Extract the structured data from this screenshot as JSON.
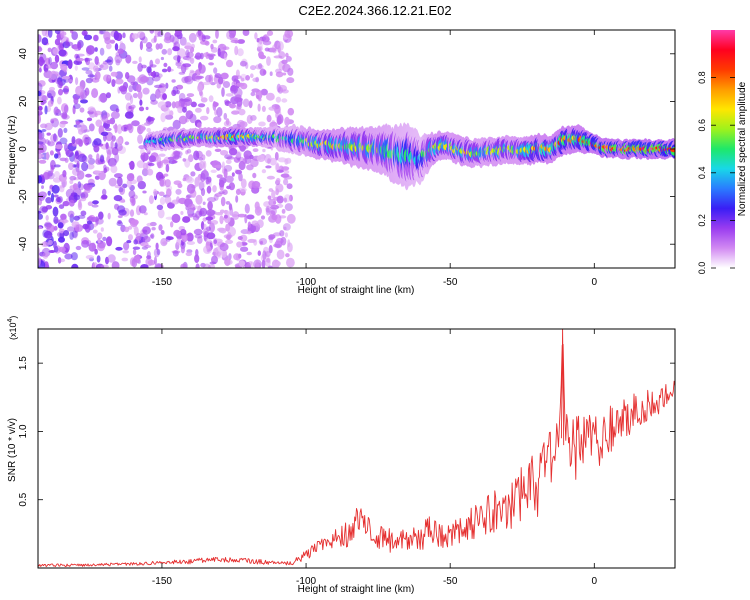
{
  "title": "C2E2.2024.366.12.21.E02",
  "chart_data": [
    {
      "type": "heatmap",
      "xlabel": "Height of straight line (km)",
      "ylabel": "Frequency (Hz)",
      "xlim": [
        -193,
        28
      ],
      "ylim": [
        -50,
        50
      ],
      "xticks": [
        -150,
        -100,
        -50,
        0
      ],
      "yticks": [
        -40,
        -20,
        0,
        20,
        40
      ],
      "colorbar": {
        "label": "Normalized spectral amplitude",
        "range": [
          0,
          1
        ],
        "ticks": [
          "0.0",
          "0.2",
          "0.4",
          "0.6",
          "0.8"
        ],
        "colors": [
          "#ffffff",
          "#d28af2",
          "#9a3cf0",
          "#3a1ef5",
          "#2a7bff",
          "#18d8e8",
          "#1ee86a",
          "#9ef21c",
          "#ffe600",
          "#ff9c00",
          "#ff3a00",
          "#ff0020",
          "#ff3aa8"
        ]
      },
      "ridge": {
        "x": [
          -155,
          -145,
          -135,
          -125,
          -115,
          -105,
          -95,
          -85,
          -75,
          -65,
          -60,
          -55,
          -50,
          -45,
          -40,
          -35,
          -30,
          -25,
          -20,
          -15,
          -10,
          -5,
          0,
          5,
          10,
          15,
          20,
          25,
          28
        ],
        "y": [
          3,
          4,
          5,
          5,
          5,
          4,
          2,
          1,
          0,
          -3,
          -4,
          1,
          1,
          -1,
          -2,
          -1,
          0,
          -1,
          0,
          0,
          4,
          4,
          2,
          0,
          0,
          0,
          0,
          0,
          0
        ],
        "halfwidth": [
          2,
          2,
          2,
          2,
          2,
          3,
          3,
          4,
          5,
          7,
          5,
          3,
          3,
          3,
          3,
          3,
          3,
          3,
          3,
          3,
          3,
          3,
          2,
          2,
          2,
          2,
          2,
          2,
          2
        ],
        "amplitude": [
          0.4,
          0.5,
          0.6,
          0.75,
          0.5,
          0.45,
          0.65,
          0.6,
          0.55,
          0.45,
          0.4,
          0.65,
          0.6,
          0.65,
          0.55,
          0.6,
          0.6,
          0.6,
          0.75,
          0.7,
          0.8,
          0.75,
          0.85,
          0.9,
          0.85,
          0.9,
          0.9,
          0.85,
          0.85
        ]
      },
      "noise_region": {
        "x": [
          -193,
          -105
        ],
        "y": [
          -50,
          50
        ],
        "amplitude": [
          0.05,
          0.25
        ]
      }
    },
    {
      "type": "line",
      "xlabel": "Height of straight line (km)",
      "ylabel": "SNR (10 * v/v)",
      "y_multiplier": "(x10",
      "y_multiplier_exp": "4",
      "multiplier_close": ")",
      "xlim": [
        -193,
        28
      ],
      "ylim": [
        0,
        1.75
      ],
      "xticks": [
        -150,
        -100,
        -50,
        0
      ],
      "yticks": [
        "0.5",
        "1.0",
        "1.5"
      ],
      "line_color": "#e53030",
      "series": [
        {
          "x": [
            -193,
            -180,
            -160,
            -150,
            -140,
            -130,
            -125,
            -120,
            -110,
            -105,
            -100,
            -95,
            -90,
            -85,
            -82,
            -80,
            -75,
            -70,
            -65,
            -60,
            -58,
            -55,
            -50,
            -45,
            -40,
            -35,
            -30,
            -25,
            -22,
            -20,
            -18,
            -15,
            -12,
            -11,
            -10,
            -8,
            -5,
            -3,
            0,
            5,
            10,
            15,
            20,
            25,
            28
          ],
          "y": [
            0.02,
            0.02,
            0.03,
            0.04,
            0.05,
            0.06,
            0.06,
            0.05,
            0.04,
            0.03,
            0.1,
            0.15,
            0.2,
            0.25,
            0.4,
            0.3,
            0.22,
            0.2,
            0.22,
            0.2,
            0.3,
            0.25,
            0.25,
            0.3,
            0.35,
            0.4,
            0.45,
            0.55,
            0.7,
            0.5,
            0.8,
            0.8,
            1.0,
            1.75,
            0.9,
            0.85,
            0.9,
            1.0,
            0.9,
            1.0,
            1.1,
            1.15,
            1.2,
            1.25,
            1.3
          ],
          "noise": [
            0.01,
            0.01,
            0.01,
            0.015,
            0.02,
            0.02,
            0.02,
            0.02,
            0.015,
            0.015,
            0.04,
            0.06,
            0.08,
            0.1,
            0.12,
            0.1,
            0.09,
            0.09,
            0.09,
            0.09,
            0.1,
            0.1,
            0.1,
            0.12,
            0.14,
            0.16,
            0.18,
            0.2,
            0.22,
            0.2,
            0.22,
            0.22,
            0.24,
            0.0,
            0.24,
            0.24,
            0.22,
            0.22,
            0.2,
            0.18,
            0.16,
            0.14,
            0.12,
            0.1,
            0.08
          ]
        }
      ]
    }
  ]
}
